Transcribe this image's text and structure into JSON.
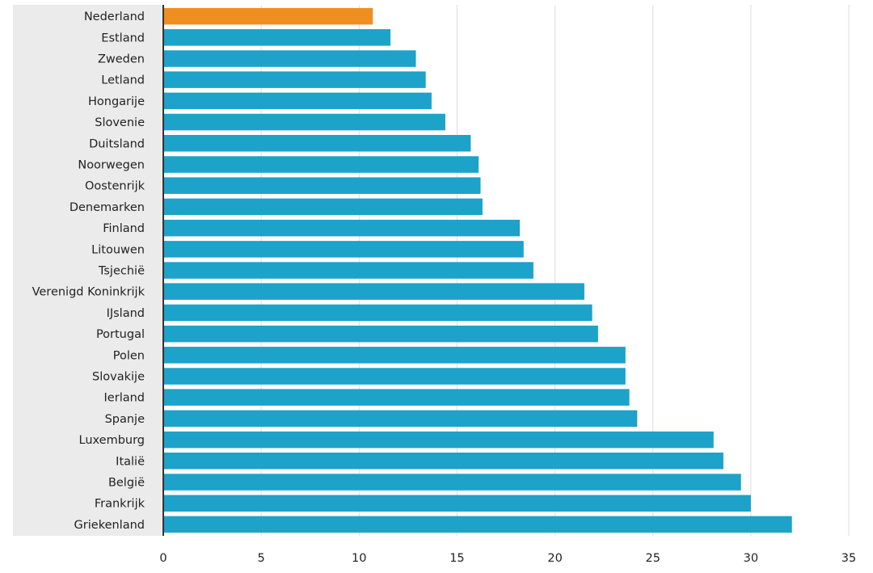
{
  "chart_data": {
    "type": "bar",
    "orientation": "horizontal",
    "title": "",
    "xlabel": "",
    "ylabel": "",
    "xlim": [
      0,
      35
    ],
    "ticks": [
      0,
      5,
      10,
      15,
      20,
      25,
      30,
      35
    ],
    "grid": true,
    "categories": [
      "Nederland",
      "Estland",
      "Zweden",
      "Letland",
      "Hongarije",
      "Slovenie",
      "Duitsland",
      "Noorwegen",
      "Oostenrijk",
      "Denemarken",
      "Finland",
      "Litouwen",
      "Tsjechië",
      "Verenigd Koninkrijk",
      "IJsland",
      "Portugal",
      "Polen",
      "Slovakije",
      "Ierland",
      "Spanje",
      "Luxemburg",
      "Italië",
      "België",
      "Frankrijk",
      "Griekenland"
    ],
    "values": [
      10.7,
      11.6,
      12.9,
      13.4,
      13.7,
      14.4,
      15.7,
      16.1,
      16.2,
      16.3,
      18.2,
      18.4,
      18.9,
      21.5,
      21.9,
      22.2,
      23.6,
      23.6,
      23.8,
      24.2,
      28.1,
      28.6,
      29.5,
      30.0,
      32.1
    ],
    "highlight": "Nederland",
    "colors": {
      "bar": "#1da2c9",
      "highlight": "#ef8f22",
      "label_panel": "#ebebeb",
      "grid": "#dedede",
      "axis": "#333333",
      "text": "#222222"
    }
  }
}
